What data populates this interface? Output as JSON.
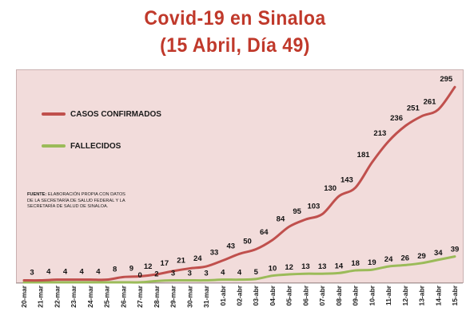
{
  "header": {
    "title_line1": "Covid-19 en Sinaloa",
    "title_line2": "(15 Abril, Día 49)"
  },
  "legend": {
    "confirmed_label": "CASOS CONFIRMADOS",
    "deaths_label": "FALLECIDOS"
  },
  "source": {
    "label": "FUENTE:",
    "text": "ELABORACIÓN PROPIA CON DATOS DE LA SECRETARÍA DE SALUD FEDERAL Y LA SECRETARÍA DE SALUD DE SINALOA."
  },
  "colors": {
    "title": "#c0392b",
    "confirmed": "#c0504d",
    "deaths": "#9bbb59",
    "plot_background": "#f2dcdb"
  },
  "chart_data": {
    "type": "line",
    "title": "Covid-19 en Sinaloa (15 Abril, Día 49)",
    "xlabel": "",
    "ylabel": "",
    "ylim": [
      0,
      300
    ],
    "grid": false,
    "legend_position": "top-left",
    "categories": [
      "20-mar",
      "21-mar",
      "22-mar",
      "23-mar",
      "24-mar",
      "25-mar",
      "26-mar",
      "27-mar",
      "28-mar",
      "29-mar",
      "30-mar",
      "31-mar",
      "01-abr",
      "02-abr",
      "03-abr",
      "04-abr",
      "05-abr",
      "06-abr",
      "07-abr",
      "08-abr",
      "09-abr",
      "10-abr",
      "11-abr",
      "12-abr",
      "13-abr",
      "14-abr",
      "15-abr"
    ],
    "series": [
      {
        "name": "CASOS CONFIRMADOS",
        "color": "#c0504d",
        "values": [
          3,
          4,
          4,
          4,
          4,
          8,
          9,
          12,
          17,
          21,
          24,
          33,
          43,
          50,
          64,
          84,
          95,
          103,
          130,
          143,
          181,
          213,
          236,
          251,
          261,
          295,
          295
        ],
        "labels": [
          "3",
          "4",
          "4",
          "4",
          "4",
          "8",
          "9",
          "12",
          "17",
          "21",
          "24",
          "33",
          "43",
          "50",
          "64",
          "84",
          "95",
          "103",
          "130",
          "143",
          "181",
          "213",
          "236",
          "251",
          "261",
          "295",
          ""
        ]
      },
      {
        "name": "FALLECIDOS",
        "color": "#9bbb59",
        "values": [
          0,
          0,
          0,
          0,
          0,
          0,
          0,
          0,
          2,
          3,
          3,
          3,
          4,
          4,
          5,
          10,
          12,
          13,
          13,
          14,
          18,
          19,
          24,
          26,
          29,
          34,
          39
        ],
        "labels": [
          "",
          "",
          "",
          "",
          "",
          "",
          "",
          "0",
          "2",
          "3",
          "3",
          "3",
          "4",
          "4",
          "5",
          "10",
          "12",
          "13",
          "13",
          "14",
          "18",
          "19",
          "24",
          "26",
          "29",
          "34",
          "39"
        ]
      }
    ]
  }
}
